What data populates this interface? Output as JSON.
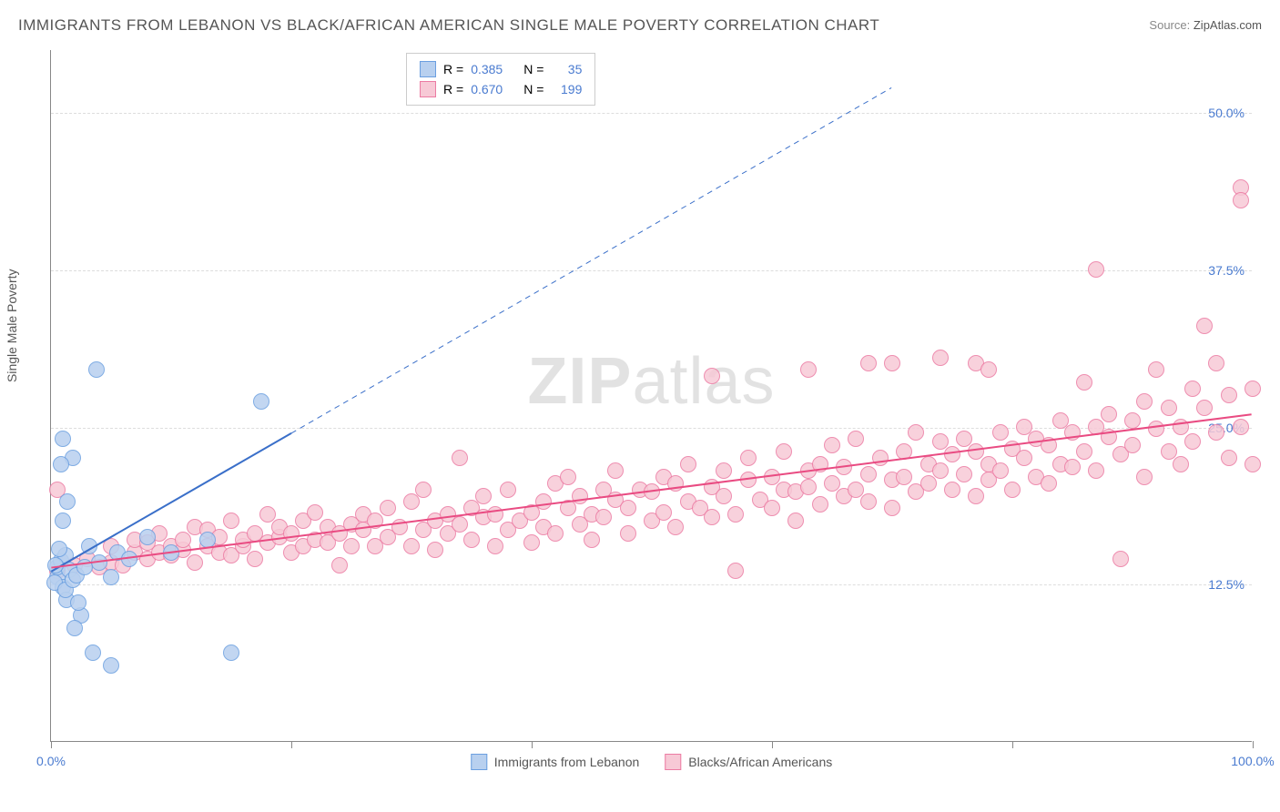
{
  "title": "IMMIGRANTS FROM LEBANON VS BLACK/AFRICAN AMERICAN SINGLE MALE POVERTY CORRELATION CHART",
  "source_label": "Source:",
  "source_value": "ZipAtlas.com",
  "ylabel": "Single Male Poverty",
  "watermark_bold": "ZIP",
  "watermark_light": "atlas",
  "chart": {
    "type": "scatter",
    "background_color": "#ffffff",
    "grid_color": "#dddddd",
    "axis_color": "#888888",
    "label_color": "#4a7bd0",
    "xlim": [
      0,
      100
    ],
    "ylim": [
      0,
      55
    ],
    "xticks": [
      0,
      20,
      40,
      60,
      80,
      100
    ],
    "xtick_labels": {
      "0": "0.0%",
      "100": "100.0%"
    },
    "yticks": [
      12.5,
      25.0,
      37.5,
      50.0
    ],
    "ytick_labels": [
      "12.5%",
      "25.0%",
      "37.5%",
      "50.0%"
    ],
    "point_radius": 9,
    "point_stroke_width": 1.5,
    "series": [
      {
        "name": "Immigrants from Lebanon",
        "color_fill": "#b8d0ef",
        "color_stroke": "#6b9fe0",
        "R": "0.385",
        "N": "35",
        "trend": {
          "x1": 0,
          "y1": 13.5,
          "x2": 20,
          "y2": 24.5,
          "dashed_beyond": true,
          "x3": 70,
          "y3": 52,
          "color": "#3a6fc9",
          "width": 2
        },
        "points": [
          [
            0.5,
            13.0
          ],
          [
            0.5,
            13.8
          ],
          [
            0.8,
            14.3
          ],
          [
            1.0,
            12.2
          ],
          [
            1.2,
            14.8
          ],
          [
            0.3,
            12.6
          ],
          [
            0.7,
            15.3
          ],
          [
            1.3,
            11.2
          ],
          [
            1.5,
            13.6
          ],
          [
            1.2,
            12.0
          ],
          [
            0.4,
            14.0
          ],
          [
            1.8,
            12.8
          ],
          [
            2.1,
            13.2
          ],
          [
            2.5,
            10.0
          ],
          [
            2.0,
            9.0
          ],
          [
            2.3,
            11.0
          ],
          [
            3.5,
            7.0
          ],
          [
            5.0,
            6.0
          ],
          [
            1.0,
            17.5
          ],
          [
            1.4,
            19.0
          ],
          [
            1.8,
            22.5
          ],
          [
            1.0,
            24.0
          ],
          [
            0.8,
            22.0
          ],
          [
            3.8,
            29.5
          ],
          [
            4.0,
            14.2
          ],
          [
            5.0,
            13.0
          ],
          [
            5.5,
            15.0
          ],
          [
            6.5,
            14.5
          ],
          [
            8.0,
            16.2
          ],
          [
            10.0,
            15.0
          ],
          [
            13.0,
            16.0
          ],
          [
            15.0,
            7.0
          ],
          [
            17.5,
            27.0
          ],
          [
            2.8,
            13.8
          ],
          [
            3.2,
            15.5
          ]
        ]
      },
      {
        "name": "Blacks/African Americans",
        "color_fill": "#f7c9d6",
        "color_stroke": "#ec7ba3",
        "R": "0.670",
        "N": "199",
        "trend": {
          "x1": 0,
          "y1": 13.8,
          "x2": 100,
          "y2": 26.0,
          "dashed_beyond": false,
          "color": "#e94b82",
          "width": 2
        },
        "points": [
          [
            0.5,
            13.5
          ],
          [
            0.5,
            20.0
          ],
          [
            2,
            14.0
          ],
          [
            3,
            14.5
          ],
          [
            4,
            13.8
          ],
          [
            5,
            14.2
          ],
          [
            5,
            15.5
          ],
          [
            6,
            14.0
          ],
          [
            7,
            15.0
          ],
          [
            7,
            16.0
          ],
          [
            8,
            14.5
          ],
          [
            8,
            15.8
          ],
          [
            9,
            15.0
          ],
          [
            9,
            16.5
          ],
          [
            10,
            14.8
          ],
          [
            10,
            15.5
          ],
          [
            11,
            15.2
          ],
          [
            11,
            16.0
          ],
          [
            12,
            14.2
          ],
          [
            12,
            17.0
          ],
          [
            13,
            15.5
          ],
          [
            13,
            16.8
          ],
          [
            14,
            15.0
          ],
          [
            14,
            16.2
          ],
          [
            15,
            14.8
          ],
          [
            15,
            17.5
          ],
          [
            16,
            15.5
          ],
          [
            16,
            16.0
          ],
          [
            17,
            16.5
          ],
          [
            17,
            14.5
          ],
          [
            18,
            18.0
          ],
          [
            18,
            15.8
          ],
          [
            19,
            16.2
          ],
          [
            19,
            17.0
          ],
          [
            20,
            15.0
          ],
          [
            20,
            16.5
          ],
          [
            21,
            17.5
          ],
          [
            21,
            15.5
          ],
          [
            22,
            16.0
          ],
          [
            22,
            18.2
          ],
          [
            23,
            15.8
          ],
          [
            23,
            17.0
          ],
          [
            24,
            16.5
          ],
          [
            24,
            14.0
          ],
          [
            25,
            17.2
          ],
          [
            25,
            15.5
          ],
          [
            26,
            18.0
          ],
          [
            26,
            16.8
          ],
          [
            27,
            15.5
          ],
          [
            27,
            17.5
          ],
          [
            28,
            16.2
          ],
          [
            28,
            18.5
          ],
          [
            29,
            17.0
          ],
          [
            30,
            19.0
          ],
          [
            30,
            15.5
          ],
          [
            31,
            16.8
          ],
          [
            31,
            20.0
          ],
          [
            32,
            17.5
          ],
          [
            32,
            15.2
          ],
          [
            33,
            18.0
          ],
          [
            33,
            16.5
          ],
          [
            34,
            22.5
          ],
          [
            34,
            17.2
          ],
          [
            35,
            18.5
          ],
          [
            35,
            16.0
          ],
          [
            36,
            17.8
          ],
          [
            36,
            19.5
          ],
          [
            37,
            15.5
          ],
          [
            37,
            18.0
          ],
          [
            38,
            16.8
          ],
          [
            38,
            20.0
          ],
          [
            39,
            17.5
          ],
          [
            40,
            18.2
          ],
          [
            40,
            15.8
          ],
          [
            41,
            19.0
          ],
          [
            41,
            17.0
          ],
          [
            42,
            20.5
          ],
          [
            42,
            16.5
          ],
          [
            43,
            18.5
          ],
          [
            43,
            21.0
          ],
          [
            44,
            17.2
          ],
          [
            44,
            19.5
          ],
          [
            45,
            18.0
          ],
          [
            45,
            16.0
          ],
          [
            46,
            20.0
          ],
          [
            46,
            17.8
          ],
          [
            47,
            19.2
          ],
          [
            47,
            21.5
          ],
          [
            48,
            18.5
          ],
          [
            48,
            16.5
          ],
          [
            49,
            20.0
          ],
          [
            50,
            17.5
          ],
          [
            50,
            19.8
          ],
          [
            51,
            18.2
          ],
          [
            51,
            21.0
          ],
          [
            52,
            17.0
          ],
          [
            52,
            20.5
          ],
          [
            53,
            19.0
          ],
          [
            53,
            22.0
          ],
          [
            54,
            18.5
          ],
          [
            55,
            17.8
          ],
          [
            55,
            20.2
          ],
          [
            56,
            19.5
          ],
          [
            56,
            21.5
          ],
          [
            57,
            18.0
          ],
          [
            57,
            13.5
          ],
          [
            58,
            20.8
          ],
          [
            58,
            22.5
          ],
          [
            59,
            19.2
          ],
          [
            60,
            21.0
          ],
          [
            60,
            18.5
          ],
          [
            61,
            20.0
          ],
          [
            61,
            23.0
          ],
          [
            62,
            19.8
          ],
          [
            62,
            17.5
          ],
          [
            63,
            21.5
          ],
          [
            63,
            20.2
          ],
          [
            64,
            18.8
          ],
          [
            64,
            22.0
          ],
          [
            65,
            20.5
          ],
          [
            65,
            23.5
          ],
          [
            66,
            19.5
          ],
          [
            66,
            21.8
          ],
          [
            67,
            20.0
          ],
          [
            67,
            24.0
          ],
          [
            68,
            21.2
          ],
          [
            68,
            19.0
          ],
          [
            69,
            22.5
          ],
          [
            70,
            20.8
          ],
          [
            70,
            18.5
          ],
          [
            71,
            23.0
          ],
          [
            71,
            21.0
          ],
          [
            72,
            19.8
          ],
          [
            72,
            24.5
          ],
          [
            73,
            22.0
          ],
          [
            73,
            20.5
          ],
          [
            74,
            21.5
          ],
          [
            74,
            23.8
          ],
          [
            75,
            20.0
          ],
          [
            75,
            22.8
          ],
          [
            76,
            21.2
          ],
          [
            76,
            24.0
          ],
          [
            77,
            19.5
          ],
          [
            77,
            23.0
          ],
          [
            78,
            22.0
          ],
          [
            78,
            20.8
          ],
          [
            79,
            24.5
          ],
          [
            79,
            21.5
          ],
          [
            80,
            23.2
          ],
          [
            80,
            20.0
          ],
          [
            81,
            25.0
          ],
          [
            81,
            22.5
          ],
          [
            82,
            21.0
          ],
          [
            82,
            24.0
          ],
          [
            83,
            23.5
          ],
          [
            83,
            20.5
          ],
          [
            84,
            25.5
          ],
          [
            84,
            22.0
          ],
          [
            85,
            21.8
          ],
          [
            85,
            24.5
          ],
          [
            86,
            28.5
          ],
          [
            86,
            23.0
          ],
          [
            87,
            25.0
          ],
          [
            87,
            21.5
          ],
          [
            88,
            24.2
          ],
          [
            88,
            26.0
          ],
          [
            89,
            22.8
          ],
          [
            89,
            14.5
          ],
          [
            90,
            25.5
          ],
          [
            90,
            23.5
          ],
          [
            91,
            27.0
          ],
          [
            91,
            21.0
          ],
          [
            92,
            24.8
          ],
          [
            92,
            29.5
          ],
          [
            93,
            23.0
          ],
          [
            93,
            26.5
          ],
          [
            94,
            22.0
          ],
          [
            94,
            25.0
          ],
          [
            95,
            28.0
          ],
          [
            95,
            23.8
          ],
          [
            96,
            33.0
          ],
          [
            96,
            26.5
          ],
          [
            97,
            24.5
          ],
          [
            97,
            30.0
          ],
          [
            98,
            22.5
          ],
          [
            98,
            27.5
          ],
          [
            99,
            44.0
          ],
          [
            99,
            43.0
          ],
          [
            99,
            25.0
          ],
          [
            100,
            22.0
          ],
          [
            100,
            28.0
          ],
          [
            87,
            37.5
          ],
          [
            77,
            30.0
          ],
          [
            78,
            29.5
          ],
          [
            68,
            30.0
          ],
          [
            63,
            29.5
          ],
          [
            55,
            29.0
          ],
          [
            74,
            30.5
          ],
          [
            70,
            30.0
          ]
        ]
      }
    ]
  },
  "legend_top": {
    "R_label": "R =",
    "N_label": "N ="
  },
  "legend_bottom": [
    {
      "label": "Immigrants from Lebanon",
      "fill": "#b8d0ef",
      "stroke": "#6b9fe0"
    },
    {
      "label": "Blacks/African Americans",
      "fill": "#f7c9d6",
      "stroke": "#ec7ba3"
    }
  ]
}
